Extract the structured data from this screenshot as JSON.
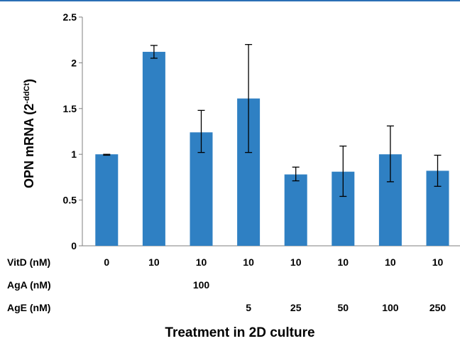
{
  "chart_data": {
    "type": "bar",
    "ylabel": "OPN mRNA (2",
    "ylabel_superscript": "-ddCt",
    "ylabel_close": ")",
    "xlabel": "Treatment in 2D culture",
    "ylim": [
      0,
      2.5
    ],
    "yticks": [
      "0",
      "0.5",
      "1",
      "1.5",
      "2",
      "2.5"
    ],
    "grid": false,
    "color": "#2f80c3",
    "values": [
      1.0,
      2.12,
      1.24,
      1.61,
      0.78,
      0.81,
      1.0,
      0.82
    ],
    "error_low": [
      0.99,
      2.05,
      1.02,
      1.02,
      0.71,
      0.54,
      0.7,
      0.65
    ],
    "error_high": [
      1.0,
      2.19,
      1.48,
      2.2,
      0.86,
      1.09,
      1.31,
      0.99
    ],
    "treatment_rows": [
      {
        "label": "VitD (nM)",
        "values": [
          "0",
          "10",
          "10",
          "10",
          "10",
          "10",
          "10",
          "10"
        ]
      },
      {
        "label": "AgA (nM)",
        "values": [
          "",
          "",
          "100",
          "",
          "",
          "",
          "",
          ""
        ]
      },
      {
        "label": "AgE (nM)",
        "values": [
          "",
          "",
          "",
          "5",
          "25",
          "50",
          "100",
          "250"
        ]
      }
    ]
  }
}
